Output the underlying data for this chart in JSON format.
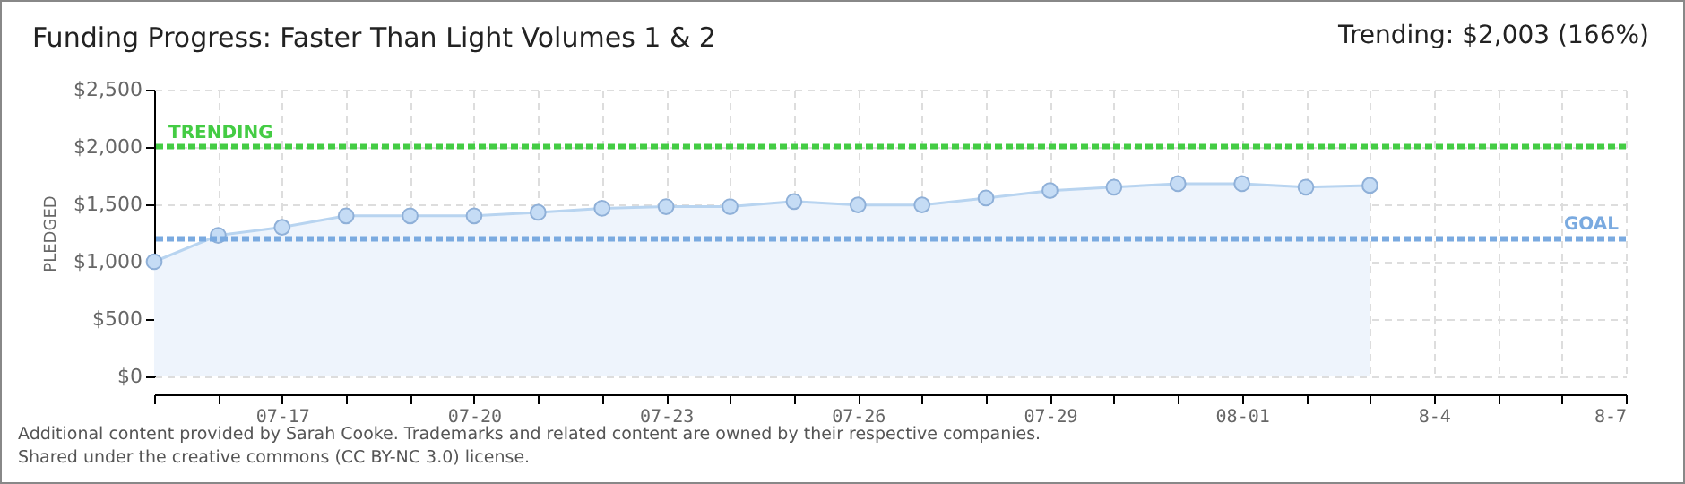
{
  "chart_data": {
    "type": "area",
    "title": "Funding Progress: Faster Than Light Volumes 1 & 2",
    "ylabel": "PLEDGED",
    "x": [
      "--07-15",
      "--07-16",
      "--07-17",
      "--07-18",
      "--07-19",
      "--07-20",
      "--07-21",
      "--07-22",
      "--07-23",
      "--07-24",
      "--07-25",
      "--07-26",
      "--07-27",
      "--07-28",
      "--07-29",
      "--07-30",
      "--07-31",
      "--08-01",
      "--08-02",
      "--08-03"
    ],
    "series": [
      {
        "color": "#b8d4f0",
        "values": [
          1000,
          1230,
          1300,
          1400,
          1400,
          1400,
          1430,
          1465,
          1480,
          1480,
          1525,
          1495,
          1495,
          1555,
          1620,
          1650,
          1680,
          1680,
          1650,
          1665
        ]
      }
    ],
    "xlim": [
      "--07-15",
      "--08-07"
    ],
    "xticks": [
      {
        "value": "--07-15",
        "label": null
      },
      {
        "value": "--07-16",
        "label": null
      },
      {
        "value": "--07-17",
        "label": "07-17"
      },
      {
        "value": "--07-18",
        "label": null
      },
      {
        "value": "--07-19",
        "label": null
      },
      {
        "value": "--07-20",
        "label": "07-20"
      },
      {
        "value": "--07-21",
        "label": null
      },
      {
        "value": "--07-22",
        "label": null
      },
      {
        "value": "--07-23",
        "label": "07-23"
      },
      {
        "value": "--07-24",
        "label": null
      },
      {
        "value": "--07-25",
        "label": null
      },
      {
        "value": "--07-26",
        "label": "07-26"
      },
      {
        "value": "--07-27",
        "label": null
      },
      {
        "value": "--07-28",
        "label": null
      },
      {
        "value": "--07-29",
        "label": "07-29"
      },
      {
        "value": "--07-30",
        "label": null
      },
      {
        "value": "--07-31",
        "label": null
      },
      {
        "value": "--08-01",
        "label": "08-01"
      },
      {
        "value": "--08-02",
        "label": null
      },
      {
        "value": "--08-03",
        "label": null
      },
      {
        "value": "--08-04",
        "label": "8-4"
      },
      {
        "value": "--08-05",
        "label": null
      },
      {
        "value": "--08-06",
        "label": null
      },
      {
        "value": "--08-07",
        "label": "8-7"
      }
    ],
    "ylim": [
      0,
      2500
    ],
    "yticks": [
      {
        "value": 0,
        "label": "$0"
      },
      {
        "value": 500,
        "label": "$500"
      },
      {
        "value": 1000,
        "label": "$1,000"
      },
      {
        "value": 1500,
        "label": "$1,500"
      },
      {
        "value": 2000,
        "label": "$2,000"
      },
      {
        "value": 2500,
        "label": "$2,500"
      }
    ],
    "ref_lines": [
      {
        "axis": "y",
        "value": 2003,
        "label": "TRENDING",
        "color": "#44cc44",
        "line_style": "dashed"
      },
      {
        "axis": "y",
        "value": 1200,
        "label": "GOAL",
        "color": "#7aaae0",
        "line_style": "dashed"
      }
    ],
    "grid": true,
    "marker": "circle",
    "annotations": [
      "Trending: $2,003 (166%)",
      "Additional content provided by Sarah Cooke. Trademarks and related content are owned by their respective companies.",
      "Shared under the creative commons (CC BY-NC 3.0) license."
    ]
  }
}
